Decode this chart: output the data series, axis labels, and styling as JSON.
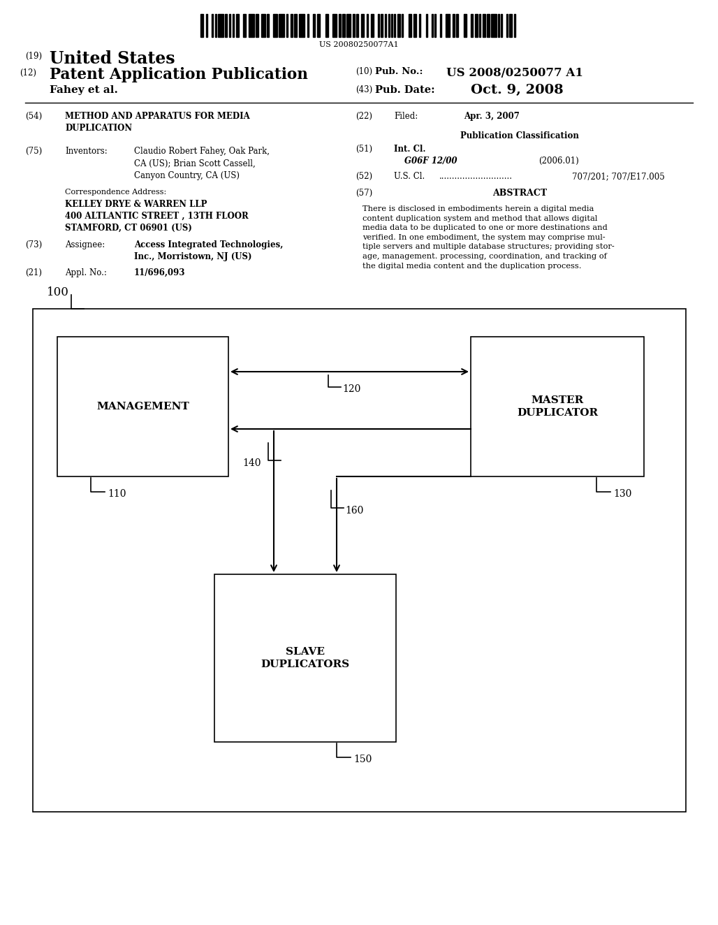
{
  "background_color": "#ffffff",
  "barcode_text": "US 20080250077A1",
  "header": {
    "num19": "(19)",
    "united_states": "United States",
    "num12": "(12)",
    "pat_app_pub": "Patent Application Publication",
    "num10": "(10)",
    "pub_no_label": "Pub. No.:",
    "pub_no_value": "US 2008/0250077 A1",
    "inventor": "Fahey et al.",
    "num43": "(43)",
    "pub_date_label": "Pub. Date:",
    "pub_date_value": "Oct. 9, 2008"
  },
  "left_col": {
    "num54": "(54)",
    "title_label": "METHOD AND APPARATUS FOR MEDIA\nDUPLICATION",
    "num75": "(75)",
    "inventors_label": "Inventors:",
    "inventors_value": "Claudio Robert Fahey, Oak Park,\nCA (US); Brian Scott Cassell,\nCanyon Country, CA (US)",
    "correspondence_label": "Correspondence Address:",
    "correspondence_value": "KELLEY DRYE & WARREN LLP\n400 ALTLANTIC STREET , 13TH FLOOR\nSTAMFORD, CT 06901 (US)",
    "num73": "(73)",
    "assignee_label": "Assignee:",
    "assignee_value": "Access Integrated Technologies,\nInc., Morristown, NJ (US)",
    "num21": "(21)",
    "appl_label": "Appl. No.:",
    "appl_value": "11/696,093"
  },
  "right_col": {
    "num22": "(22)",
    "filed_label": "Filed:",
    "filed_value": "Apr. 3, 2007",
    "pub_class_label": "Publication Classification",
    "num51": "(51)",
    "int_cl_label": "Int. Cl.",
    "int_cl_value": "G06F 12/00",
    "int_cl_date": "(2006.01)",
    "num52": "(52)",
    "us_cl_label": "U.S. Cl.",
    "us_cl_value": "707/201; 707/E17.005",
    "num57": "(57)",
    "abstract_label": "ABSTRACT",
    "abstract_text": "There is disclosed in embodiments herein a digital media\ncontent duplication system and method that allows digital\nmedia data to be duplicated to one or more destinations and\nverified. In one embodiment, the system may comprise mul-\ntiple servers and multiple database structures; providing stor-\nage, management. processing, coordination, and tracking of\nthe digital media content and the duplication process."
  }
}
